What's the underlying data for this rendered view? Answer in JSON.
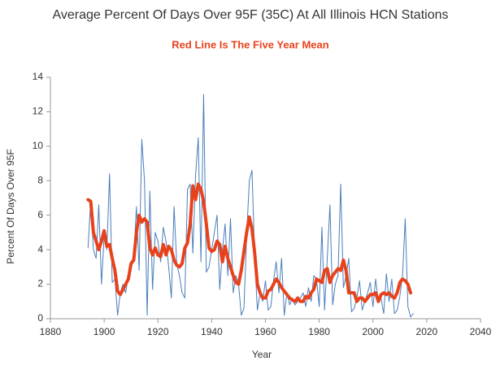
{
  "chart_data": {
    "type": "line",
    "title": "Average Percent Of Days Over 95F (35C) At All Illinois HCN Stations",
    "subtitle": "Red Line Is The Five Year Mean",
    "x_label": "Year",
    "y_label": "Percent Of Days Over 95F",
    "xlim": [
      1880,
      2040
    ],
    "xticks": [
      1880,
      1900,
      1920,
      1940,
      1960,
      1980,
      2000,
      2020,
      2040
    ],
    "ylim": [
      0,
      14
    ],
    "yticks": [
      0,
      2,
      4,
      6,
      8,
      10,
      12,
      14
    ],
    "grid": false,
    "x": [
      1894,
      1895,
      1896,
      1897,
      1898,
      1899,
      1900,
      1901,
      1902,
      1903,
      1904,
      1905,
      1906,
      1907,
      1908,
      1909,
      1910,
      1911,
      1912,
      1913,
      1914,
      1915,
      1916,
      1917,
      1918,
      1919,
      1920,
      1921,
      1922,
      1923,
      1924,
      1925,
      1926,
      1927,
      1928,
      1929,
      1930,
      1931,
      1932,
      1933,
      1934,
      1935,
      1936,
      1937,
      1938,
      1939,
      1940,
      1941,
      1942,
      1943,
      1944,
      1945,
      1946,
      1947,
      1948,
      1949,
      1950,
      1951,
      1952,
      1953,
      1954,
      1955,
      1956,
      1957,
      1958,
      1959,
      1960,
      1961,
      1962,
      1963,
      1964,
      1965,
      1966,
      1967,
      1968,
      1969,
      1970,
      1971,
      1972,
      1973,
      1974,
      1975,
      1976,
      1977,
      1978,
      1979,
      1980,
      1981,
      1982,
      1983,
      1984,
      1985,
      1986,
      1987,
      1988,
      1989,
      1990,
      1991,
      1992,
      1993,
      1994,
      1995,
      1996,
      1997,
      1998,
      1999,
      2000,
      2001,
      2002,
      2003,
      2004,
      2005,
      2006,
      2007,
      2008,
      2009,
      2010,
      2011,
      2012,
      2013,
      2014,
      2015
    ],
    "series": [
      {
        "color": "#4a7ebb",
        "width": 1,
        "values": [
          4.1,
          6.9,
          4.0,
          3.5,
          6.6,
          2.0,
          4.8,
          4.0,
          8.4,
          2.1,
          2.3,
          0.2,
          1.5,
          2.0,
          1.5,
          2.5,
          3.0,
          3.5,
          6.5,
          2.8,
          10.4,
          8.0,
          0.2,
          7.4,
          1.7,
          5.0,
          4.5,
          3.3,
          5.3,
          4.5,
          3.0,
          1.2,
          6.5,
          3.2,
          2.5,
          1.5,
          1.2,
          7.5,
          7.8,
          3.8,
          8.3,
          10.5,
          3.3,
          13.0,
          2.7,
          3.0,
          4.0,
          5.0,
          6.0,
          1.7,
          4.0,
          5.5,
          2.5,
          5.8,
          1.5,
          2.5,
          2.0,
          0.2,
          0.6,
          4.8,
          8.0,
          8.6,
          3.5,
          0.5,
          1.5,
          1.0,
          2.2,
          0.5,
          0.7,
          2.2,
          3.3,
          1.5,
          3.5,
          0.2,
          1.5,
          0.8,
          1.2,
          0.8,
          1.0,
          1.2,
          1.5,
          0.7,
          1.8,
          1.0,
          2.5,
          2.3,
          0.7,
          5.3,
          0.5,
          3.5,
          6.6,
          0.8,
          2.0,
          2.5,
          7.8,
          1.8,
          2.5,
          3.5,
          0.4,
          0.6,
          1.2,
          2.2,
          0.5,
          1.0,
          1.5,
          2.1,
          0.7,
          2.3,
          1.0,
          1.2,
          0.3,
          2.6,
          1.0,
          2.3,
          0.3,
          0.5,
          1.3,
          2.5,
          5.8,
          0.7,
          0.1,
          0.3
        ]
      },
      {
        "color": "#e8421c",
        "width": 4,
        "values": [
          6.9,
          6.8,
          5.0,
          4.5,
          4.0,
          4.5,
          5.1,
          4.2,
          4.3,
          3.5,
          2.8,
          1.6,
          1.4,
          1.7,
          2.0,
          2.3,
          3.2,
          3.4,
          5.0,
          6.0,
          5.6,
          5.8,
          5.6,
          4.1,
          3.7,
          4.1,
          3.7,
          3.6,
          4.3,
          3.7,
          4.2,
          4.0,
          3.4,
          3.1,
          3.0,
          3.2,
          4.1,
          4.4,
          5.5,
          7.7,
          6.9,
          7.8,
          7.5,
          6.8,
          5.5,
          4.1,
          3.9,
          4.0,
          4.5,
          4.3,
          3.3,
          4.2,
          3.5,
          3.0,
          2.5,
          2.1,
          2.0,
          2.8,
          3.9,
          5.0,
          5.9,
          5.2,
          3.8,
          2.0,
          1.5,
          1.2,
          1.2,
          1.6,
          1.7,
          2.0,
          2.3,
          2.1,
          1.8,
          1.6,
          1.4,
          1.2,
          1.1,
          1.0,
          1.2,
          1.0,
          1.0,
          1.3,
          1.2,
          1.5,
          1.7,
          2.3,
          2.2,
          2.1,
          2.8,
          2.9,
          2.1,
          2.5,
          2.7,
          2.9,
          2.8,
          3.4,
          2.8,
          1.5,
          1.5,
          1.5,
          1.0,
          1.2,
          1.2,
          1.0,
          1.2,
          1.4,
          1.4,
          1.5,
          1.0,
          1.4,
          1.5,
          1.4,
          1.5,
          1.3,
          1.2,
          1.5,
          2.1,
          2.3,
          2.2,
          2.0,
          1.5,
          null
        ]
      }
    ]
  }
}
